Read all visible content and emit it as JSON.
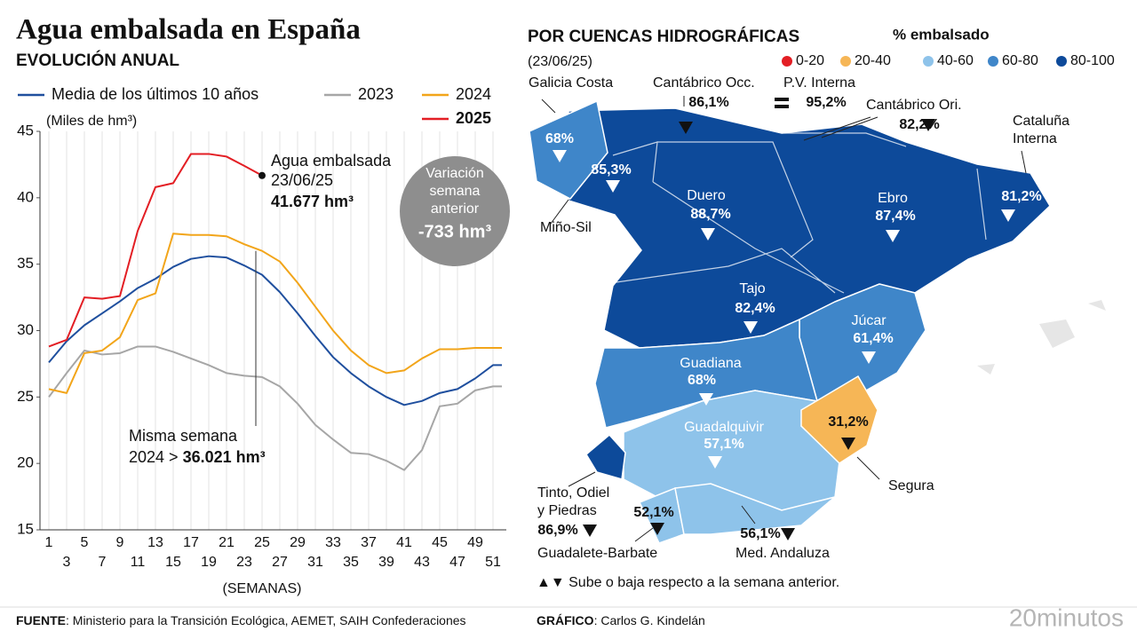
{
  "chart_data": {
    "type": "line",
    "title": "Agua embalsada en España",
    "subtitle": "EVOLUCIÓN ANUAL",
    "ylabel": "(Miles de hm³)",
    "xlabel": "(SEMANAS)",
    "x": [
      1,
      3,
      5,
      7,
      9,
      11,
      13,
      15,
      17,
      19,
      21,
      23,
      25,
      27,
      29,
      31,
      33,
      35,
      37,
      39,
      41,
      43,
      45,
      47,
      49,
      51,
      52
    ],
    "xlim": [
      0,
      52.5
    ],
    "xticks": [
      1,
      3,
      5,
      7,
      9,
      11,
      13,
      15,
      17,
      19,
      21,
      23,
      25,
      27,
      29,
      31,
      33,
      35,
      37,
      39,
      41,
      43,
      45,
      47,
      49,
      51
    ],
    "ylim": [
      15,
      45
    ],
    "yticks": [
      15,
      20,
      25,
      30,
      35,
      40,
      45
    ],
    "grid": "x",
    "series": [
      {
        "name": "Media de los últimos 10 años",
        "color": "#1f4f9e",
        "values": [
          27.6,
          29.2,
          30.4,
          31.3,
          32.2,
          33.2,
          33.9,
          34.8,
          35.4,
          35.6,
          35.5,
          34.9,
          34.2,
          32.9,
          31.3,
          29.6,
          28.0,
          26.8,
          25.8,
          25.0,
          24.4,
          24.7,
          25.3,
          25.6,
          26.4,
          27.4,
          27.4
        ]
      },
      {
        "name": "2023",
        "color": "#a6a6a6",
        "values": [
          25.0,
          26.8,
          28.5,
          28.2,
          28.3,
          28.8,
          28.8,
          28.4,
          27.9,
          27.4,
          26.8,
          26.6,
          26.5,
          25.8,
          24.5,
          22.9,
          21.8,
          20.8,
          20.7,
          20.2,
          19.5,
          21.0,
          24.3,
          24.5,
          25.5,
          25.8,
          25.8
        ]
      },
      {
        "name": "2024",
        "color": "#f2a51a",
        "values": [
          25.6,
          25.3,
          28.3,
          28.5,
          29.5,
          32.3,
          32.8,
          37.3,
          37.2,
          37.2,
          37.1,
          36.5,
          36.0,
          35.2,
          33.6,
          31.8,
          30.0,
          28.5,
          27.4,
          26.8,
          27.0,
          27.9,
          28.6,
          28.6,
          28.7,
          28.7,
          28.7
        ]
      },
      {
        "name": "2025",
        "color": "#e31e24",
        "values": [
          28.8,
          29.3,
          32.5,
          32.4,
          32.6,
          37.5,
          40.8,
          41.1,
          43.3,
          43.3,
          43.1,
          42.4,
          41.677,
          null,
          null,
          null,
          null,
          null,
          null,
          null,
          null,
          null,
          null,
          null,
          null,
          null,
          null
        ]
      }
    ],
    "annotations": [
      "Agua embalsada",
      "23/06/25",
      "41.677 hm³",
      "Misma semana",
      "2024 > ",
      "36.021 hm³"
    ],
    "variation": [
      "Variación",
      "semana",
      "anterior",
      "-733 hm³"
    ]
  },
  "map": {
    "title": "POR CUENCAS HIDROGRÁFICAS",
    "date": "(23/06/25)",
    "legend_title": "% embalsado",
    "legend": [
      {
        "label": "0-20",
        "color": "#e31e24"
      },
      {
        "label": "20-40",
        "color": "#f6b656"
      },
      {
        "label": "40-60",
        "color": "#8ec3ea"
      },
      {
        "label": "60-80",
        "color": "#3f86c9"
      },
      {
        "label": "80-100",
        "color": "#0d4a9a"
      }
    ],
    "basins": [
      {
        "name": [
          "Galicia Costa"
        ],
        "value": "68%",
        "trend": "down"
      },
      {
        "name": [
          "Miño-Sil"
        ],
        "value": "85,3%",
        "trend": "down"
      },
      {
        "name": [
          "Cantábrico Occ."
        ],
        "value": "86,1%",
        "trend": "down"
      },
      {
        "name": [
          "P.V. Interna"
        ],
        "value": "95,2%",
        "trend": "equal"
      },
      {
        "name": [
          "Cantábrico Ori."
        ],
        "value": "82,2%",
        "trend": "down"
      },
      {
        "name": [
          "Cataluña",
          "Interna"
        ],
        "value": "81,2%",
        "trend": "down"
      },
      {
        "name": [
          "Duero"
        ],
        "value": "88,7%",
        "trend": "down"
      },
      {
        "name": [
          "Ebro"
        ],
        "value": "87,4%",
        "trend": "down"
      },
      {
        "name": [
          "Tajo"
        ],
        "value": "82,4%",
        "trend": "down"
      },
      {
        "name": [
          "Júcar"
        ],
        "value": "61,4%",
        "trend": "down"
      },
      {
        "name": [
          "Guadiana"
        ],
        "value": "68%",
        "trend": "down"
      },
      {
        "name": [
          "Guadalquivir"
        ],
        "value": "57,1%",
        "trend": "down"
      },
      {
        "name": [
          "Segura"
        ],
        "value": "31,2%",
        "trend": "down"
      },
      {
        "name": [
          "Tinto, Odiel",
          "y Piedras"
        ],
        "value": "86,9%",
        "trend": "down"
      },
      {
        "name": [
          "Guadalete-Barbate"
        ],
        "value": "52,1%",
        "trend": "down"
      },
      {
        "name": [
          "Med. Andaluza"
        ],
        "value": "56,1%",
        "trend": "down"
      }
    ],
    "note": "▲▼ Sube o baja respecto a la semana anterior."
  },
  "footer": {
    "source_label": "FUENTE",
    "source": ": Ministerio para la Transición Ecológica, AEMET, SAIH Confederaciones",
    "credit_label": "GRÁFICO",
    "credit": ": Carlos G. Kindelán",
    "logo": "20minutos"
  }
}
